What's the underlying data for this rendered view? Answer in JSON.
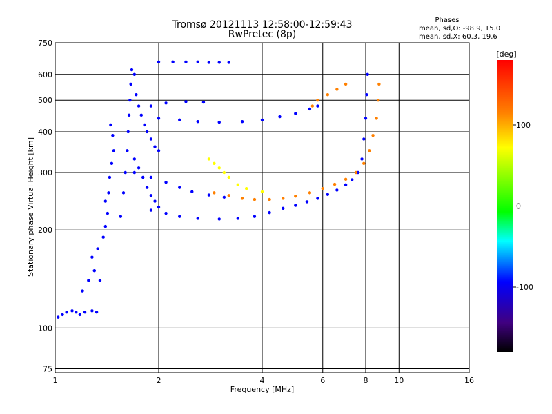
{
  "chart_data": {
    "type": "scatter",
    "title": "Tromsø 20121113 12:58:00-12:59:43",
    "subtitle": "RwPretec (8p)",
    "xlabel": "Frequency [MHz]",
    "ylabel": "Stationary phase Virtual Height [km]",
    "xscale": "log",
    "yscale": "log",
    "xlim": [
      1,
      16
    ],
    "ylim": [
      73,
      750
    ],
    "xticks": [
      1,
      2,
      4,
      6,
      8,
      10,
      16
    ],
    "xtick_labels": [
      "1",
      "2",
      "4",
      "6",
      "8",
      "10",
      "16"
    ],
    "yticks": [
      75,
      100,
      200,
      300,
      400,
      500,
      600,
      750
    ],
    "ytick_labels": [
      "75",
      "100",
      "200",
      "300",
      "400",
      "500",
      "600",
      "750"
    ],
    "grid": true,
    "phase_summary": {
      "heading": "Phases",
      "line_o": "mean, sd,O: -98.9, 15.0",
      "line_x": "mean, sd,X:  60.3, 19.6"
    },
    "colorbar": {
      "label": "[deg]",
      "range": [
        -180,
        180
      ],
      "ticks": [
        100,
        0,
        -100
      ],
      "tick_labels": [
        "100",
        "0",
        "-100"
      ],
      "colors": [
        "#ff0000",
        "#ff8000",
        "#ffff00",
        "#00ff00",
        "#00ffff",
        "#0000ff",
        "#400080",
        "#000000"
      ]
    },
    "series": [
      {
        "id": "o-e-layer-column",
        "phase": -100,
        "points": [
          [
            1.02,
            108
          ],
          [
            1.05,
            110
          ],
          [
            1.08,
            112
          ],
          [
            1.12,
            113
          ],
          [
            1.15,
            112
          ],
          [
            1.18,
            110
          ],
          [
            1.22,
            112
          ],
          [
            1.28,
            113
          ],
          [
            1.32,
            112
          ],
          [
            1.2,
            130
          ],
          [
            1.25,
            140
          ],
          [
            1.3,
            150
          ],
          [
            1.28,
            165
          ],
          [
            1.33,
            175
          ],
          [
            1.35,
            140
          ],
          [
            1.38,
            190
          ],
          [
            1.4,
            205
          ],
          [
            1.42,
            225
          ],
          [
            1.4,
            245
          ],
          [
            1.43,
            260
          ],
          [
            1.44,
            290
          ],
          [
            1.46,
            320
          ],
          [
            1.48,
            350
          ],
          [
            1.47,
            390
          ],
          [
            1.45,
            420
          ]
        ]
      },
      {
        "id": "o-f-cusp-stack",
        "phase": -100,
        "points": [
          [
            1.55,
            220
          ],
          [
            1.58,
            260
          ],
          [
            1.6,
            300
          ],
          [
            1.62,
            350
          ],
          [
            1.63,
            400
          ],
          [
            1.64,
            450
          ],
          [
            1.65,
            500
          ],
          [
            1.66,
            560
          ],
          [
            1.67,
            620
          ],
          [
            1.7,
            600
          ],
          [
            1.72,
            520
          ],
          [
            1.75,
            480
          ],
          [
            1.78,
            450
          ],
          [
            1.82,
            420
          ],
          [
            1.85,
            400
          ],
          [
            1.9,
            380
          ],
          [
            1.95,
            360
          ],
          [
            2.0,
            350
          ],
          [
            1.7,
            330
          ],
          [
            1.75,
            310
          ],
          [
            1.8,
            290
          ],
          [
            1.85,
            270
          ],
          [
            1.9,
            255
          ],
          [
            1.95,
            245
          ],
          [
            2.0,
            235
          ]
        ]
      },
      {
        "id": "o-f2-trace",
        "phase": -100,
        "points": [
          [
            1.9,
            230
          ],
          [
            2.1,
            225
          ],
          [
            2.3,
            220
          ],
          [
            2.6,
            217
          ],
          [
            3.0,
            216
          ],
          [
            3.4,
            217
          ],
          [
            3.8,
            220
          ],
          [
            4.2,
            226
          ],
          [
            4.6,
            233
          ],
          [
            5.0,
            238
          ],
          [
            5.4,
            244
          ],
          [
            5.8,
            250
          ],
          [
            6.2,
            257
          ],
          [
            6.6,
            265
          ],
          [
            7.0,
            275
          ],
          [
            7.3,
            285
          ],
          [
            7.6,
            300
          ],
          [
            7.8,
            330
          ],
          [
            7.9,
            380
          ],
          [
            8.0,
            440
          ],
          [
            8.05,
            520
          ],
          [
            8.1,
            600
          ]
        ]
      },
      {
        "id": "o-f1-branch",
        "phase": -100,
        "points": [
          [
            1.7,
            300
          ],
          [
            1.9,
            290
          ],
          [
            2.1,
            280
          ],
          [
            2.3,
            270
          ],
          [
            2.5,
            262
          ],
          [
            2.8,
            256
          ],
          [
            3.1,
            252
          ]
        ]
      },
      {
        "id": "o-oblique-upper",
        "phase": -100,
        "points": [
          [
            2.0,
            440
          ],
          [
            2.3,
            435
          ],
          [
            2.6,
            430
          ],
          [
            3.0,
            428
          ],
          [
            3.5,
            430
          ],
          [
            4.0,
            435
          ],
          [
            4.5,
            445
          ],
          [
            5.0,
            455
          ],
          [
            5.5,
            470
          ],
          [
            5.8,
            480
          ]
        ]
      },
      {
        "id": "o-oblique-lower-row",
        "phase": -100,
        "points": [
          [
            1.9,
            480
          ],
          [
            2.1,
            490
          ],
          [
            2.4,
            495
          ],
          [
            2.7,
            493
          ]
        ]
      },
      {
        "id": "o-top-band",
        "phase": -100,
        "points": [
          [
            2.0,
            655
          ],
          [
            2.2,
            655
          ],
          [
            2.4,
            655
          ],
          [
            2.6,
            655
          ],
          [
            2.8,
            653
          ],
          [
            3.0,
            653
          ],
          [
            3.2,
            653
          ]
        ]
      },
      {
        "id": "x-f2-trace",
        "phase": 100,
        "points": [
          [
            2.9,
            260
          ],
          [
            3.2,
            255
          ],
          [
            3.5,
            250
          ],
          [
            3.8,
            248
          ],
          [
            4.2,
            248
          ],
          [
            4.6,
            250
          ],
          [
            5.0,
            254
          ],
          [
            5.5,
            260
          ],
          [
            6.0,
            268
          ],
          [
            6.5,
            276
          ],
          [
            7.0,
            286
          ],
          [
            7.5,
            300
          ],
          [
            7.9,
            320
          ],
          [
            8.2,
            350
          ],
          [
            8.4,
            390
          ],
          [
            8.6,
            440
          ],
          [
            8.7,
            500
          ],
          [
            8.75,
            560
          ]
        ]
      },
      {
        "id": "x-oblique-cluster",
        "phase": 80,
        "points": [
          [
            2.8,
            330
          ],
          [
            2.9,
            320
          ],
          [
            3.0,
            310
          ],
          [
            3.1,
            300
          ],
          [
            3.2,
            290
          ],
          [
            3.4,
            275
          ],
          [
            3.6,
            268
          ],
          [
            4.0,
            262
          ]
        ]
      },
      {
        "id": "x-upper-branch",
        "phase": 100,
        "points": [
          [
            5.6,
            480
          ],
          [
            5.8,
            500
          ],
          [
            6.2,
            520
          ],
          [
            6.6,
            540
          ],
          [
            7.0,
            560
          ]
        ]
      }
    ]
  }
}
